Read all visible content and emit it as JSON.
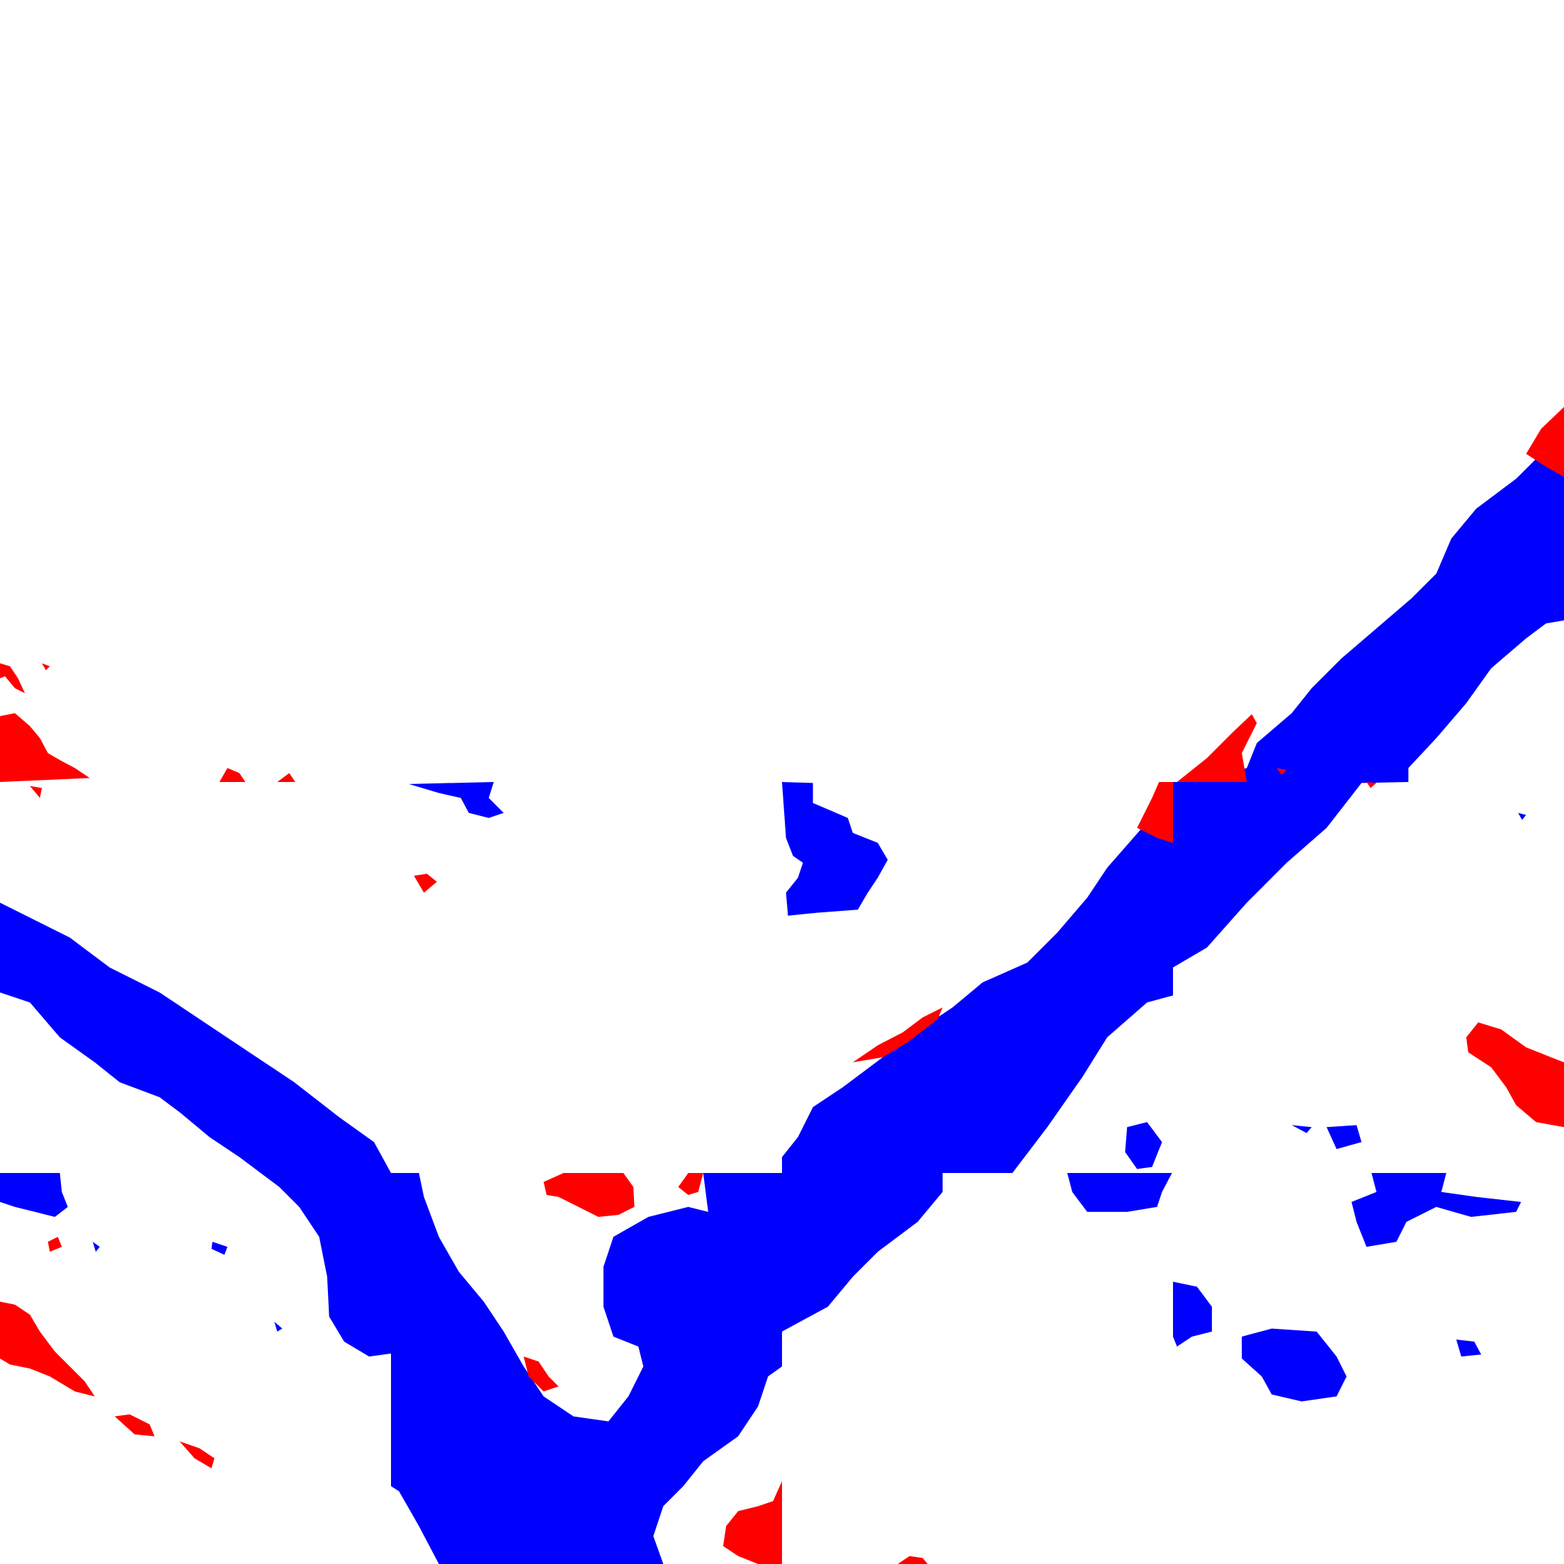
{
  "map": {
    "background_color": "#ffffff",
    "classes": [
      {
        "id": "class-blue",
        "color": "#0000ff"
      },
      {
        "id": "class-red",
        "color": "#ff0000"
      }
    ]
  }
}
